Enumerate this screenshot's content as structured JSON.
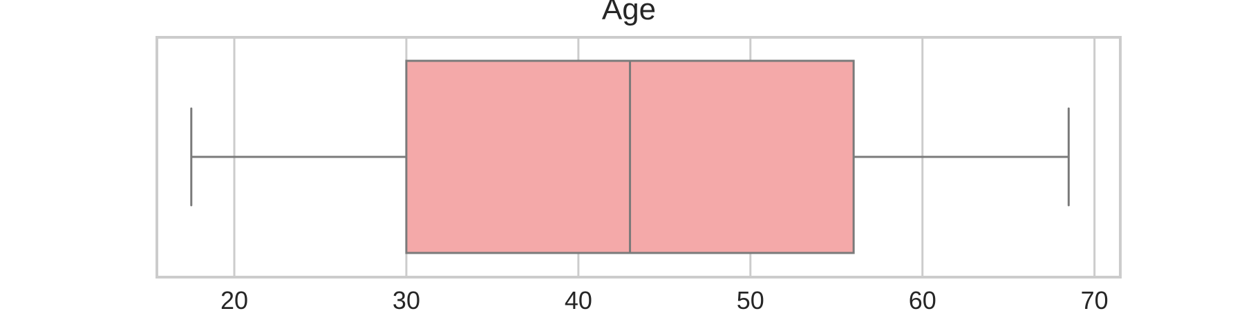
{
  "chart_data": {
    "type": "boxplot",
    "title": "Age",
    "xlabel": "",
    "ylabel": "",
    "xlim": [
      15.5,
      71.5
    ],
    "xticks": [
      20,
      30,
      40,
      50,
      60,
      70
    ],
    "xtick_labels": [
      "20",
      "30",
      "40",
      "50",
      "60",
      "70"
    ],
    "grid": true,
    "box": {
      "whisker_low": 17.5,
      "q1": 30,
      "median": 43,
      "q3": 56,
      "whisker_high": 68.5
    },
    "colors": {
      "box_fill": "#f4a9a9",
      "line": "#7a7a7a",
      "grid": "#cccccc",
      "frame": "#cccccc",
      "text": "#262626"
    }
  }
}
